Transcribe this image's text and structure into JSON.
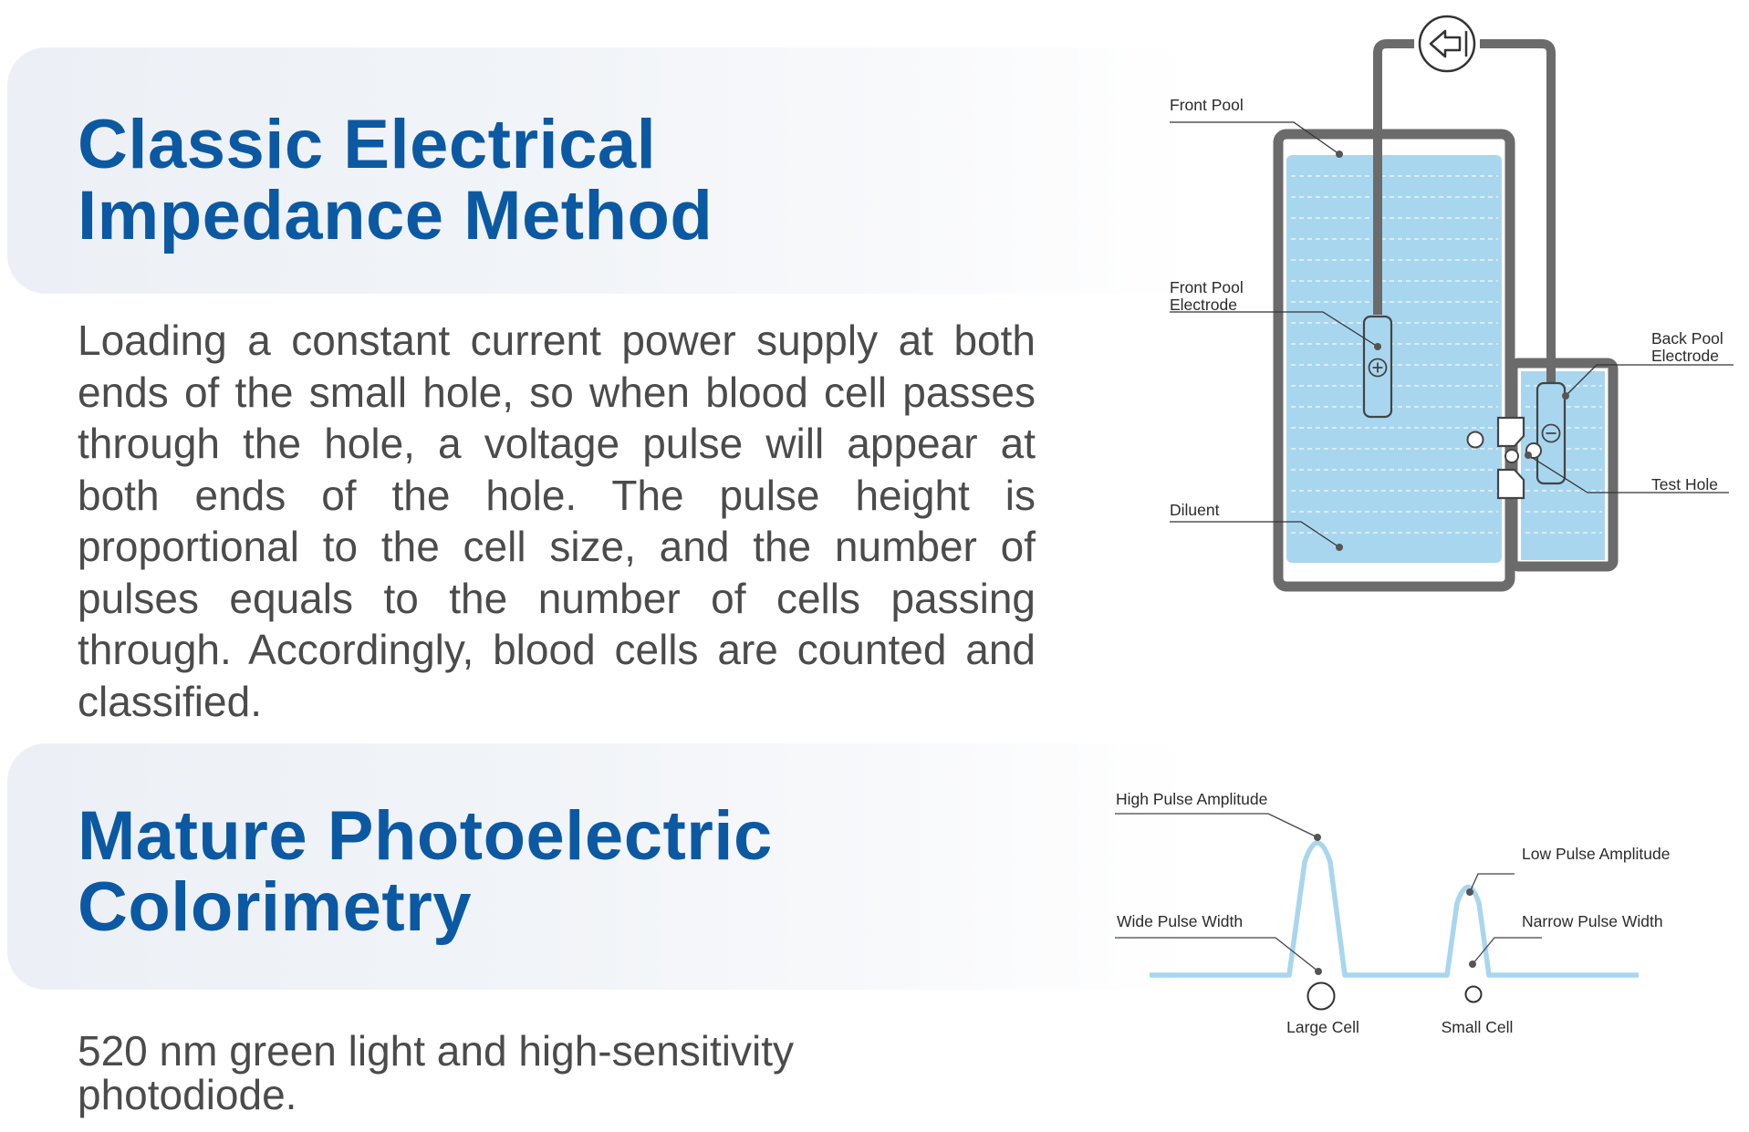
{
  "section1": {
    "title_line1": "Classic Electrical",
    "title_line2": "Impedance Method",
    "description": "Loading a constant current power supply at both ends of the small hole, so when blood cell passes through the hole, a voltage pulse will appear at both ends of the hole. The pulse height is proportional to the cell size, and the number of pulses equals to the number of cells passing through. Accordingly, blood cells are counted and classified.",
    "diagram": {
      "labels": {
        "front_pool": "Front Pool",
        "front_pool_electrode_line1": "Front Pool",
        "front_pool_electrode_line2": "Electrode",
        "back_pool_electrode_line1": "Back Pool",
        "back_pool_electrode_line2": "Electrode",
        "test_hole": "Test Hole",
        "diluent": "Diluent"
      },
      "icons": [
        "power-source-icon",
        "positive-electrode-icon",
        "negative-electrode-icon"
      ],
      "colors": {
        "liquid": "#a9d6ef",
        "frame": "#6b6b6b"
      }
    }
  },
  "section2": {
    "title_line1": "Mature Photoelectric",
    "title_line2": "Colorimetry",
    "description": "520 nm green light and high-sensitivity photodiode.",
    "diagram": {
      "labels": {
        "high_pulse_amplitude": "High Pulse Amplitude",
        "low_pulse_amplitude": "Low Pulse Amplitude",
        "wide_pulse_width": "Wide Pulse Width",
        "narrow_pulse_width": "Narrow Pulse Width",
        "large_cell": "Large Cell",
        "small_cell": "Small Cell"
      },
      "colors": {
        "pulse_line": "#a9d6ef",
        "leader": "#555555"
      }
    }
  }
}
